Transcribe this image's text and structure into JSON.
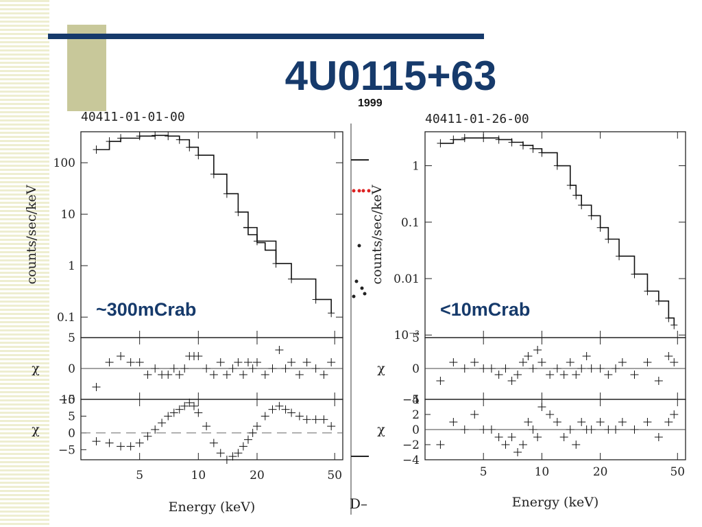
{
  "slide": {
    "title": "4U0115+63",
    "year": "1999",
    "fragment_text": "D–"
  },
  "colors": {
    "title": "#163a6b",
    "rule": "#163a6b",
    "accent_box": "#c8c89a",
    "stripes": "#eeeed0",
    "ink": "#222222",
    "fragment_points": "#dd2222"
  },
  "chart_data": [
    {
      "type": "line",
      "obs_id": "40411-01-01-00",
      "flux_label": "~300mCrab",
      "xlabel": "Energy (keV)",
      "ylabel": "counts/sec/keV",
      "xscale": "log",
      "yscale": "log",
      "xlim": [
        2.5,
        55
      ],
      "ylim": [
        0.04,
        400
      ],
      "xticks": [
        5,
        10,
        20,
        50
      ],
      "xtick_labels": [
        "5",
        "10",
        "20",
        "50"
      ],
      "yticks": [
        100,
        10,
        1,
        0.1
      ],
      "ytick_labels": [
        "100",
        "10",
        "1",
        "0.1"
      ],
      "model": {
        "x": [
          3,
          3.5,
          4,
          5,
          6,
          7,
          8,
          9,
          10,
          12,
          14,
          16,
          18,
          20,
          25,
          30,
          40,
          48
        ],
        "y": [
          180,
          260,
          300,
          330,
          340,
          330,
          280,
          200,
          140,
          60,
          25,
          11,
          5.5,
          3,
          1.1,
          0.55,
          0.22,
          0.12
        ]
      },
      "upper_branch": {
        "x": [
          17,
          18,
          20,
          22,
          25
        ],
        "y": [
          5.5,
          4,
          2.8,
          2.0,
          1.3
        ]
      },
      "residuals": [
        {
          "ylabel": "χ",
          "ylim": [
            -5,
            5
          ],
          "yticks": [
            5,
            0,
            -5
          ],
          "ytick_labels": [
            "5",
            "0",
            "−5"
          ],
          "x": [
            3,
            3.5,
            4,
            4.5,
            5,
            5.5,
            6,
            6.5,
            7,
            7.5,
            8,
            8.5,
            9,
            9.5,
            10,
            11,
            12,
            13,
            14,
            15,
            16,
            17,
            18,
            19,
            20,
            22,
            24,
            26,
            28,
            30,
            33,
            36,
            40,
            44,
            48
          ],
          "y": [
            -3,
            1,
            2,
            1,
            1,
            -1,
            0,
            -1,
            -1,
            0,
            -1,
            0,
            2,
            2,
            2,
            0,
            -1,
            1,
            -1,
            0,
            1,
            -1,
            1,
            0,
            1,
            -1,
            0,
            3,
            0,
            1,
            -1,
            1,
            0,
            -1,
            1
          ]
        },
        {
          "ylabel": "χ",
          "ylim": [
            -8,
            10
          ],
          "yticks": [
            10,
            5,
            0,
            -5
          ],
          "ytick_labels": [
            "10",
            "5",
            "0",
            "−5"
          ],
          "zero_dashed": true,
          "x": [
            3,
            3.5,
            4,
            4.5,
            5,
            5.5,
            6,
            6.5,
            7,
            7.5,
            8,
            8.5,
            9,
            9.5,
            10,
            11,
            12,
            13,
            14,
            15,
            16,
            17,
            18,
            19,
            20,
            22,
            24,
            26,
            28,
            30,
            33,
            36,
            40,
            44,
            48
          ],
          "y": [
            -2.5,
            -3,
            -4,
            -4,
            -3,
            -1,
            1,
            3,
            5,
            6,
            7,
            8,
            9,
            8,
            6,
            2,
            -3,
            -6,
            -8,
            -7,
            -6,
            -4,
            -2,
            0,
            2,
            5,
            7,
            8,
            7,
            6,
            5,
            4,
            4,
            4,
            2
          ]
        }
      ]
    },
    {
      "type": "line",
      "obs_id": "40411-01-26-00",
      "flux_label": "<10mCrab",
      "xlabel": "Energy (keV)",
      "ylabel": "counts/sec/keV",
      "xscale": "log",
      "yscale": "log",
      "xlim": [
        2.5,
        55
      ],
      "ylim": [
        0.0009,
        4
      ],
      "xticks": [
        5,
        10,
        20,
        50
      ],
      "xtick_labels": [
        "5",
        "10",
        "20",
        "50"
      ],
      "yticks": [
        1,
        0.1,
        0.01,
        0.001
      ],
      "ytick_labels": [
        "1",
        "0.1",
        "0.01",
        "10⁻³"
      ],
      "model": {
        "x": [
          3,
          3.5,
          4,
          5,
          6,
          7,
          8,
          9,
          10,
          12,
          14,
          15,
          16,
          18,
          20,
          22,
          25,
          30,
          35,
          40,
          45,
          48
        ],
        "y": [
          2.5,
          2.9,
          3.1,
          3.1,
          2.9,
          2.6,
          2.3,
          2.0,
          1.7,
          1.0,
          0.45,
          0.3,
          0.2,
          0.13,
          0.08,
          0.05,
          0.025,
          0.012,
          0.006,
          0.004,
          0.002,
          0.0015
        ]
      },
      "residuals": [
        {
          "ylabel": "χ",
          "ylim": [
            -5,
            5
          ],
          "yticks": [
            5,
            0,
            -5
          ],
          "ytick_labels": [
            "5",
            "0",
            "−5"
          ],
          "x": [
            3,
            3.5,
            4,
            4.5,
            5,
            5.5,
            6,
            6.5,
            7,
            7.5,
            8,
            8.5,
            9,
            9.5,
            10,
            11,
            12,
            13,
            14,
            15,
            16,
            17,
            18,
            20,
            22,
            24,
            26,
            30,
            35,
            40,
            45,
            48
          ],
          "y": [
            -2,
            1,
            0,
            1,
            0,
            0,
            -1,
            0,
            -2,
            -1,
            1,
            2,
            0,
            3,
            1,
            -1,
            0,
            -1,
            1,
            -1,
            0,
            2,
            0,
            0,
            -1,
            0,
            1,
            -1,
            1,
            -2,
            2,
            1
          ]
        },
        {
          "ylabel": "χ",
          "ylim": [
            -4,
            4
          ],
          "yticks": [
            4,
            2,
            0,
            -2,
            -4
          ],
          "ytick_labels": [
            "4",
            "2",
            "0",
            "−2",
            "−4"
          ],
          "x": [
            3,
            3.5,
            4,
            4.5,
            5,
            5.5,
            6,
            6.5,
            7,
            7.5,
            8,
            8.5,
            9,
            9.5,
            10,
            11,
            12,
            13,
            14,
            15,
            16,
            17,
            18,
            20,
            22,
            24,
            26,
            30,
            35,
            40,
            45,
            48
          ],
          "y": [
            -2,
            1,
            0,
            2,
            0,
            0,
            -1,
            -2,
            -1,
            -3,
            -2,
            1,
            0,
            -1,
            3,
            2,
            1,
            -1,
            0,
            -2,
            1,
            0,
            0,
            1,
            0,
            0,
            1,
            0,
            1,
            -1,
            1,
            2
          ]
        }
      ]
    }
  ]
}
